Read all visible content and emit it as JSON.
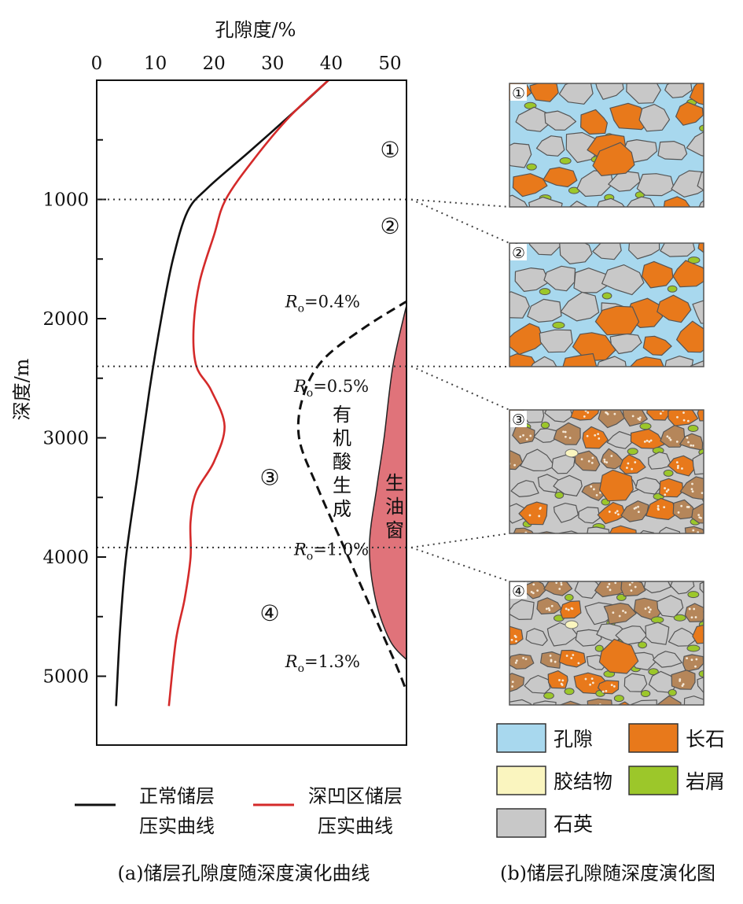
{
  "chart_data": [
    {
      "type": "line",
      "subfigure_label": "(a)",
      "title": "(a)储层孔隙度随深度演化曲线",
      "xlabel": "孔隙度/%",
      "ylabel": "深度/m",
      "xlim": [
        0,
        53
      ],
      "ylim": [
        5500,
        0
      ],
      "x_ticks": [
        "0",
        "10",
        "20",
        "30",
        "40",
        "50"
      ],
      "y_ticks": [
        "1000",
        "2000",
        "3000",
        "4000",
        "5000"
      ],
      "grid": false,
      "series": [
        {
          "name": "正常储层压实曲线",
          "color": "#111111",
          "points": [
            [
              39.5,
              0
            ],
            [
              34,
              250
            ],
            [
              26,
              600
            ],
            [
              19,
              900
            ],
            [
              15.5,
              1100
            ],
            [
              13,
              1500
            ],
            [
              11,
              2000
            ],
            [
              9,
              2600
            ],
            [
              7,
              3300
            ],
            [
              5,
              4000
            ],
            [
              4,
              4600
            ],
            [
              3.3,
              5250
            ]
          ]
        },
        {
          "name": "深凹区储层压实曲线",
          "color": "#d42a2a",
          "points": [
            [
              39.5,
              0
            ],
            [
              33,
              300
            ],
            [
              27,
              650
            ],
            [
              22,
              1000
            ],
            [
              20,
              1300
            ],
            [
              17.5,
              1700
            ],
            [
              16.5,
              2100
            ],
            [
              17,
              2400
            ],
            [
              19.5,
              2600
            ],
            [
              21.8,
              2900
            ],
            [
              20,
              3200
            ],
            [
              17,
              3450
            ],
            [
              16,
              3700
            ],
            [
              16,
              4000
            ],
            [
              15,
              4350
            ],
            [
              13.5,
              4700
            ],
            [
              12.3,
              5250
            ]
          ]
        }
      ],
      "boundaries": [
        {
          "depth": 1000,
          "style": "dotted"
        },
        {
          "depth": 2400,
          "style": "dotted"
        },
        {
          "depth": 3920,
          "style": "dotted"
        }
      ],
      "zones": [
        {
          "label": "①",
          "x": 50,
          "depth": 580
        },
        {
          "label": "②",
          "x": 50,
          "depth": 1220
        },
        {
          "label": "③",
          "x": 29.5,
          "depth": 3330
        },
        {
          "label": "④",
          "x": 29.5,
          "depth": 4470
        }
      ],
      "organic_acid_curve": {
        "label": "有机酸生成",
        "style": "dashed",
        "points": [
          [
            53,
            1850
          ],
          [
            45.5,
            2080
          ],
          [
            38.5,
            2350
          ],
          [
            35.2,
            2650
          ],
          [
            34.5,
            3000
          ],
          [
            37.5,
            3400
          ],
          [
            42,
            3900
          ],
          [
            46.5,
            4400
          ],
          [
            51,
            4900
          ],
          [
            53,
            5150
          ]
        ]
      },
      "oil_window": {
        "label": "生油窗",
        "color": "#e0737a",
        "points": [
          [
            53,
            1850
          ],
          [
            50.5,
            2400
          ],
          [
            49,
            3000
          ],
          [
            47.8,
            3400
          ],
          [
            46.5,
            3900
          ],
          [
            47.5,
            4350
          ],
          [
            50,
            4700
          ],
          [
            53,
            4870
          ]
        ]
      },
      "ro_labels": [
        {
          "text": "Ro=0.4%",
          "r": "R",
          "sub": "o",
          "val": "=0.4%",
          "x": 37.5,
          "depth": 1850
        },
        {
          "text": "Ro=0.5%",
          "r": "R",
          "sub": "o",
          "val": "=0.5%",
          "x": 39,
          "depth": 2560
        },
        {
          "text": "Ro=1.0%",
          "r": "R",
          "sub": "o",
          "val": "=1.0%",
          "x": 39,
          "depth": 3930
        },
        {
          "text": "Ro=1.3%",
          "r": "R",
          "sub": "o",
          "val": "=1.3%",
          "x": 37.5,
          "depth": 4870
        }
      ],
      "legend": [
        {
          "line1": "正常储层",
          "line2": "压实曲线",
          "color": "#111111"
        },
        {
          "line1": "深凹区储层",
          "line2": "压实曲线",
          "color": "#d42a2a"
        }
      ]
    }
  ],
  "panel_b": {
    "caption": "(b)储层孔隙随深度演化图",
    "stages": [
      "①",
      "②",
      "③",
      "④"
    ],
    "legend": [
      {
        "label": "孔隙",
        "color": "#a8d8ee"
      },
      {
        "label": "长石",
        "color": "#e8791b"
      },
      {
        "label": "胶结物",
        "color": "#faf5bf"
      },
      {
        "label": "岩屑",
        "color": "#9cc72a"
      },
      {
        "label": "石英",
        "color": "#c8c8c8"
      }
    ]
  }
}
